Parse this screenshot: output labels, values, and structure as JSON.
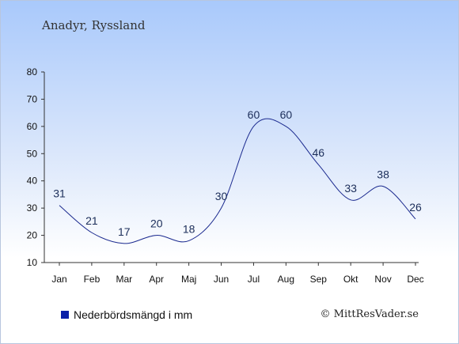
{
  "title": "Anadyr, Ryssland",
  "legend_label": "Nederbördsmängd i mm",
  "credit": "© MittResVader.se",
  "colors": {
    "line": "#1b2a8f",
    "label": "#1c2e5a",
    "swatch": "#0a1fa8"
  },
  "chart_data": {
    "type": "line",
    "categories": [
      "Jan",
      "Feb",
      "Mar",
      "Apr",
      "Maj",
      "Jun",
      "Jul",
      "Aug",
      "Sep",
      "Okt",
      "Nov",
      "Dec"
    ],
    "series": [
      {
        "name": "Nederbördsmängd i mm",
        "values": [
          31,
          21,
          17,
          20,
          18,
          30,
          60,
          60,
          46,
          33,
          38,
          26
        ]
      }
    ],
    "ylim": [
      10,
      80
    ],
    "yticks": [
      10,
      20,
      30,
      40,
      50,
      60,
      70,
      80
    ],
    "grid": false,
    "legend": "bottom-left"
  }
}
